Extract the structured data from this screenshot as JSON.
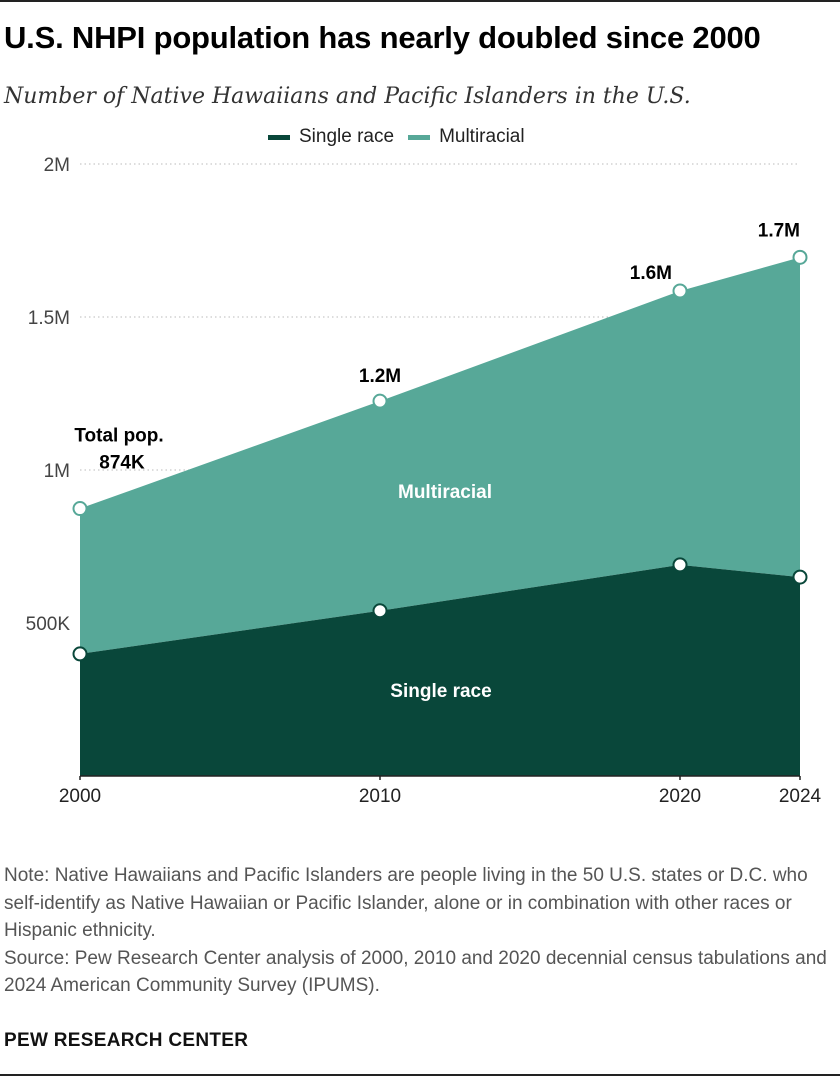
{
  "header": {
    "title": "U.S. NHPI population has nearly doubled since 2000",
    "subtitle": "Number of Native Hawaiians and Pacific Islanders in the U.S."
  },
  "chart_data": {
    "type": "area",
    "stacked": true,
    "x": [
      2000,
      2010,
      2020,
      2024
    ],
    "x_tick_labels": [
      "2000",
      "2010",
      "2020",
      "2024"
    ],
    "series": [
      {
        "name": "Single race",
        "values": [
          399000,
          540000,
          690000,
          650000
        ],
        "color": "#09473a"
      },
      {
        "name": "Multiracial",
        "values": [
          475000,
          685000,
          895000,
          1045000
        ],
        "color": "#57a898"
      }
    ],
    "totals": [
      874000,
      1225000,
      1585000,
      1695000
    ],
    "total_labels": [
      "874K",
      "1.2M",
      "1.6M",
      "1.7M"
    ],
    "first_total_prefix": "Total pop.",
    "area_labels": {
      "single": "Single race",
      "multi": "Multiracial"
    },
    "ylim": [
      0,
      2000000
    ],
    "y_ticks": [
      500000,
      1000000,
      1500000,
      2000000
    ],
    "y_tick_labels": [
      "500K",
      "1M",
      "1.5M",
      "2M"
    ],
    "grid": true,
    "legend_position": "top-center",
    "xlabel": "",
    "ylabel": ""
  },
  "footer": {
    "note": "Note: Native Hawaiians and Pacific Islanders are people living in the 50 U.S. states or D.C. who self-identify as Native Hawaiian or Pacific Islander, alone or in combination with other races or Hispanic ethnicity.",
    "source": "Source: Pew Research Center analysis of 2000, 2010 and 2020 decennial census tabulations and 2024 American Community Survey (IPUMS).",
    "brand": "PEW RESEARCH CENTER"
  }
}
